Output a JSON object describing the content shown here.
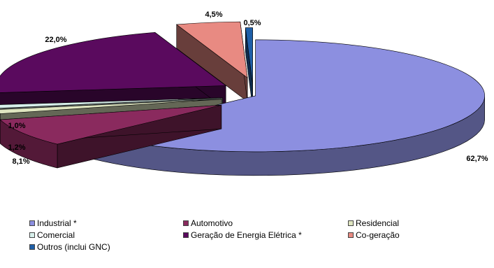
{
  "chart_data": {
    "type": "pie",
    "title": "",
    "slices": [
      {
        "label": "Industrial *",
        "value": 62.7,
        "value_label": "62,7%",
        "color": "#8c8fe0"
      },
      {
        "label": "Automotivo",
        "value": 8.1,
        "value_label": "8,1%",
        "color": "#8a2a5e"
      },
      {
        "label": "Residencial",
        "value": 1.2,
        "value_label": "1,2%",
        "color": "#dfe5c0"
      },
      {
        "label": "Comercial",
        "value": 1.0,
        "value_label": "1,0%",
        "color": "#d8f0ec"
      },
      {
        "label": "Geração de Energia Elétrica *",
        "value": 22.0,
        "value_label": "22,0%",
        "color": "#5a0a5e"
      },
      {
        "label": "Co-geração",
        "value": 4.5,
        "value_label": "4,5%",
        "color": "#e88a82"
      },
      {
        "label": "Outros (inclui GNC)",
        "value": 0.5,
        "value_label": "0,5%",
        "color": "#1f5fa8"
      }
    ],
    "legend_position": "bottom",
    "style": "3d-exploded"
  }
}
